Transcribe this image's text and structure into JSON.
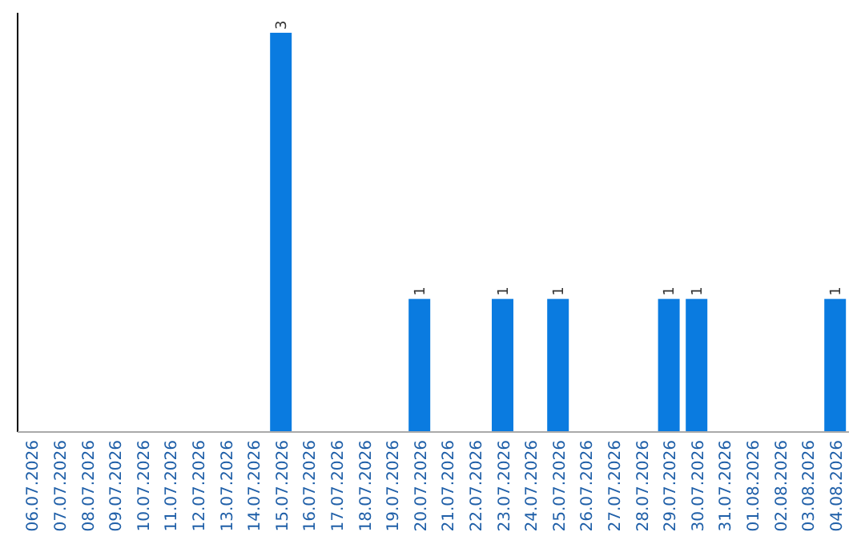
{
  "chart_data": {
    "type": "bar",
    "categories": [
      "06.07.2026",
      "07.07.2026",
      "08.07.2026",
      "09.07.2026",
      "10.07.2026",
      "11.07.2026",
      "12.07.2026",
      "13.07.2026",
      "14.07.2026",
      "15.07.2026",
      "16.07.2026",
      "17.07.2026",
      "18.07.2026",
      "19.07.2026",
      "20.07.2026",
      "21.07.2026",
      "22.07.2026",
      "23.07.2026",
      "24.07.2026",
      "25.07.2026",
      "26.07.2026",
      "27.07.2026",
      "28.07.2026",
      "29.07.2026",
      "30.07.2026",
      "31.07.2026",
      "01.08.2026",
      "02.08.2026",
      "03.08.2026",
      "04.08.2026"
    ],
    "values": [
      0,
      0,
      0,
      0,
      0,
      0,
      0,
      0,
      0,
      3,
      0,
      0,
      0,
      0,
      1,
      0,
      0,
      1,
      0,
      1,
      0,
      0,
      0,
      1,
      1,
      0,
      0,
      0,
      0,
      1
    ],
    "value_labels": [
      null,
      null,
      null,
      null,
      null,
      null,
      null,
      null,
      null,
      "3",
      null,
      null,
      null,
      null,
      "1",
      null,
      null,
      "1",
      null,
      "1",
      null,
      null,
      null,
      "1",
      "1",
      null,
      null,
      null,
      null,
      "1"
    ],
    "color": "#0a7be0",
    "tick_labels": "x"
  }
}
